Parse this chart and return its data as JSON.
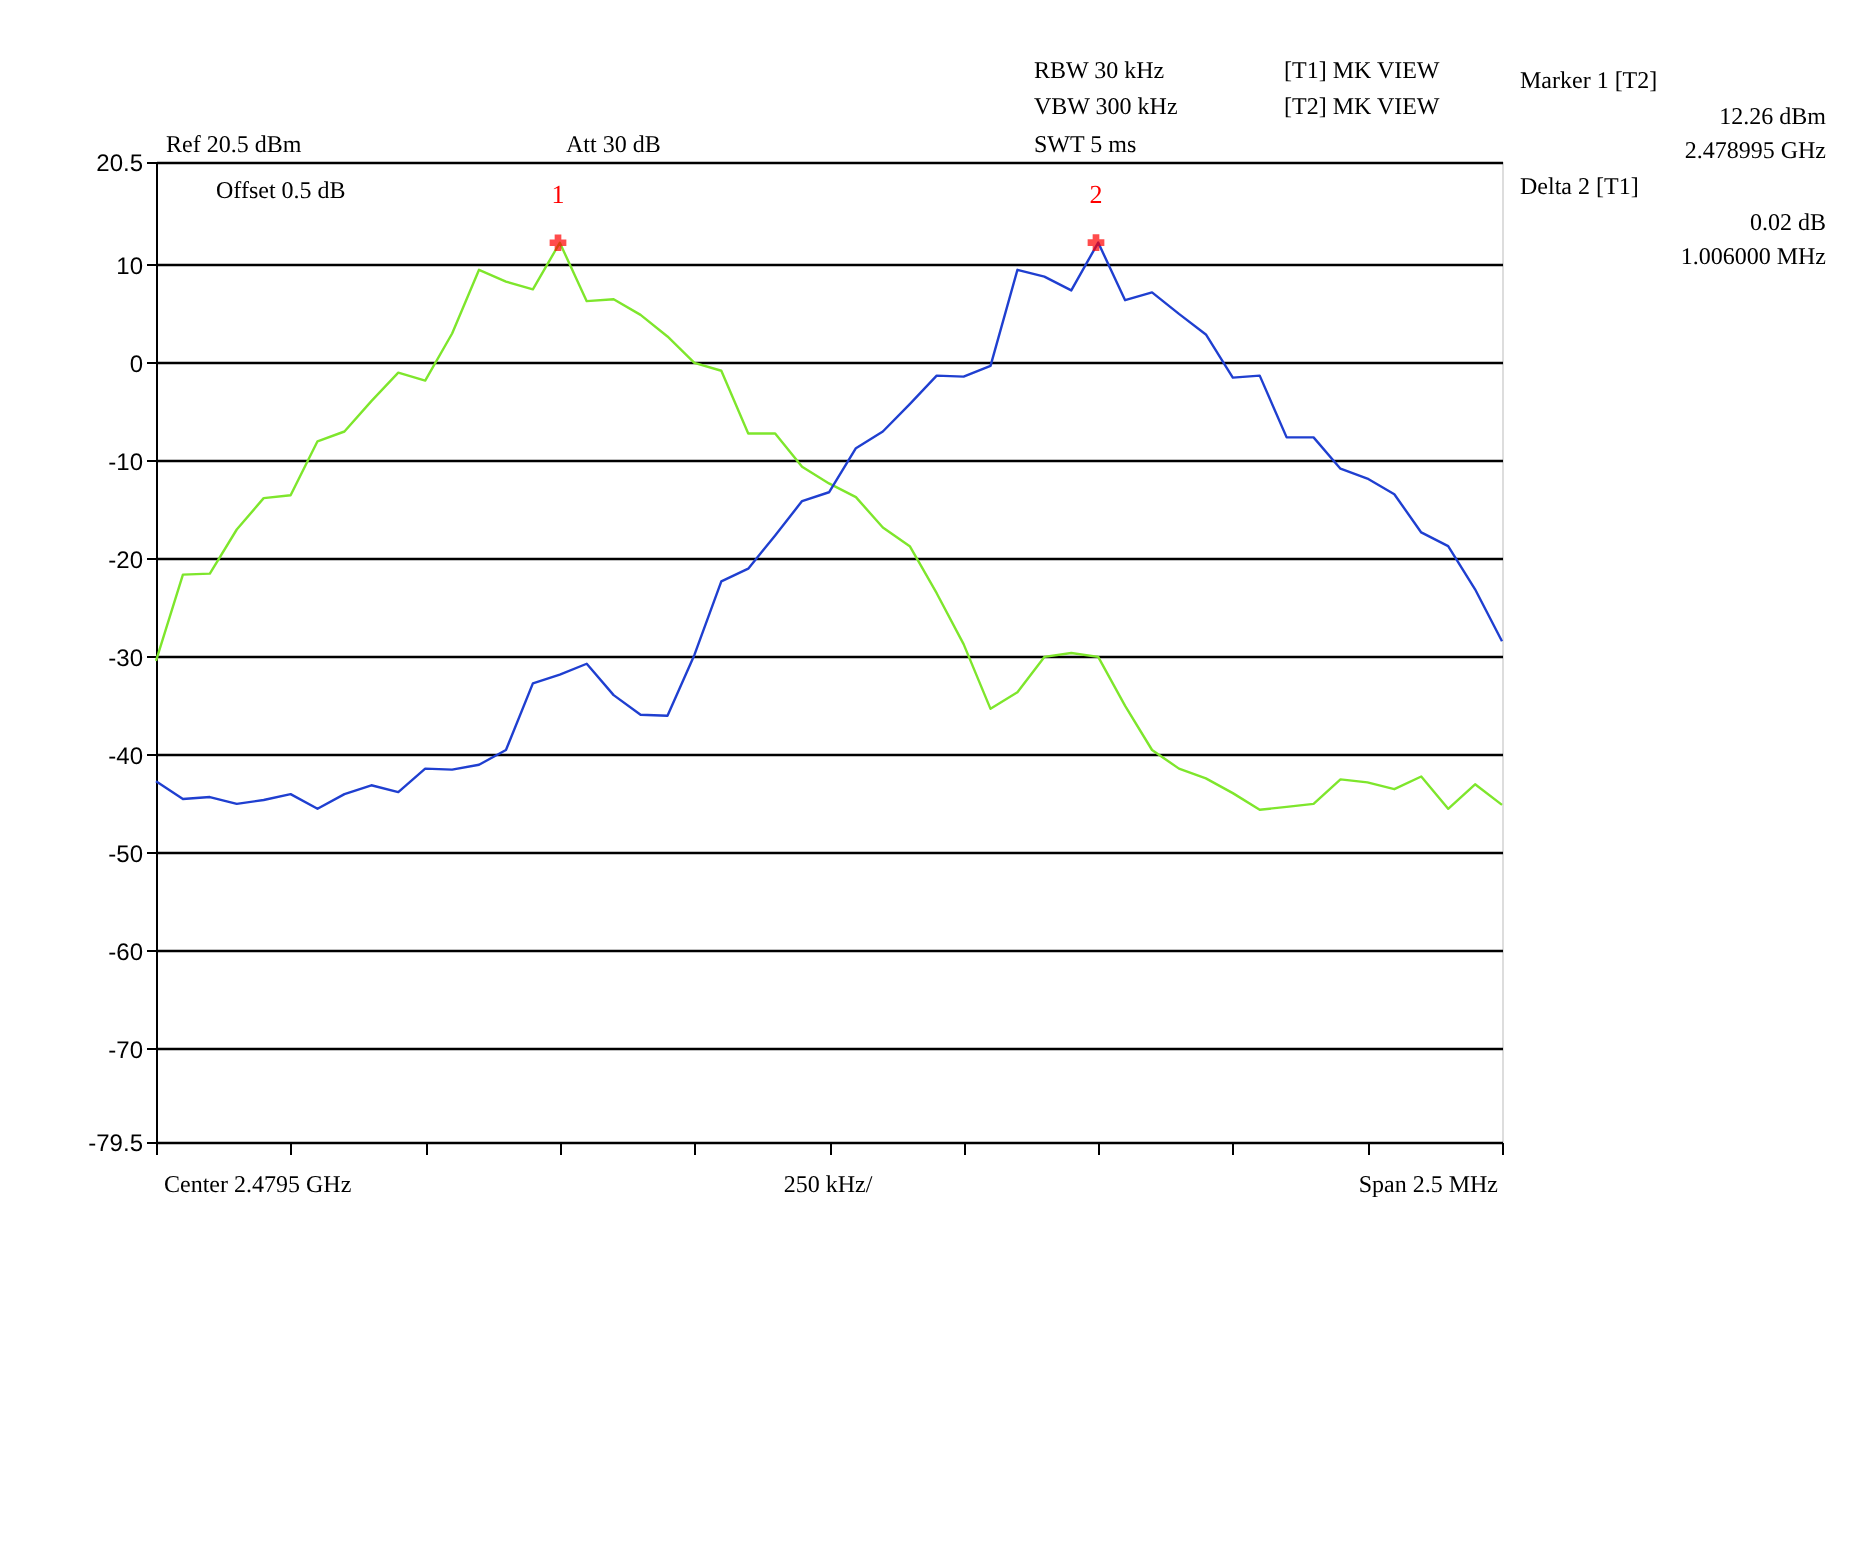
{
  "chart_data": {
    "type": "line",
    "categories": [
      null,
      null,
      null,
      null,
      null,
      null,
      null,
      null,
      null,
      null,
      null,
      null,
      null,
      null,
      null,
      null,
      null,
      null,
      null,
      null,
      null,
      null,
      null,
      null,
      null,
      null,
      null,
      null,
      null,
      null,
      null,
      null,
      null,
      null,
      null,
      null,
      null,
      null,
      null,
      null,
      null,
      null,
      null,
      null,
      null,
      null,
      null,
      null,
      null,
      null,
      null
    ],
    "ylim": [
      -79.5,
      20.5
    ],
    "yticks": [
      -79.5,
      -70,
      -60,
      -50,
      -40,
      -30,
      -20,
      -10,
      0,
      10,
      20.5
    ],
    "grid": "y",
    "line_style": "solid",
    "tick_labels": "y",
    "series": [
      {
        "color": "#7ee62c",
        "values": [
          -30.4,
          -21.6,
          -21.5,
          -17,
          -13.8,
          -13.5,
          -8,
          -7,
          -3.9,
          -1,
          -1.8,
          3,
          9.5,
          8.3,
          7.5,
          12.26,
          6.3,
          6.5,
          4.9,
          2.7,
          0,
          -0.8,
          -7.2,
          -7.2,
          -10.6,
          -12.3,
          -13.7,
          -16.8,
          -18.7,
          -23.5,
          -28.7,
          -35.3,
          -33.6,
          -30,
          -29.6,
          -30,
          -35,
          -39.5,
          -41.4,
          -42.4,
          -43.9,
          -45.6,
          -45.3,
          -45,
          -42.5,
          -42.8,
          -43.5,
          -42.2,
          -45.5,
          -43,
          -45.1
        ]
      },
      {
        "color": "#1f3fd0",
        "values": [
          -42.7,
          -44.5,
          -44.3,
          -45,
          -44.6,
          -44,
          -45.5,
          -44,
          -43.1,
          -43.8,
          -41.4,
          -41.5,
          -41,
          -39.5,
          -32.7,
          -31.8,
          -30.7,
          -33.9,
          -35.9,
          -36,
          -29.8,
          -22.3,
          -21,
          -17.6,
          -14.1,
          -13.2,
          -8.7,
          -7,
          -4.2,
          -1.3,
          -1.4,
          -0.3,
          9.5,
          8.8,
          7.4,
          12.28,
          6.4,
          7.2,
          5,
          2.9,
          -1.5,
          -1.3,
          -7.6,
          -7.6,
          -10.8,
          -11.8,
          -13.4,
          -17.3,
          -18.7,
          -23.1,
          -28.4
        ]
      }
    ],
    "annotations": [
      "Ref 20.5 dBm",
      "Att  30 dB",
      "RBW 30 kHz",
      "VBW 300 kHz",
      "SWT 5 ms",
      "[T1] MK VIEW",
      "[T2] MK VIEW",
      "Offset 0.5 dB",
      "Marker 1 [T2]",
      "12.26 dBm",
      "2.478995 GHz",
      "Delta 2 [T1]",
      "0.02 dB",
      "1.006000 MHz",
      "Center 2.4795 GHz",
      "250 kHz/",
      "Span 2.5 MHz",
      {
        "text": "1",
        "y": 12.26
      },
      {
        "text": "2",
        "y": 12.28
      }
    ]
  }
}
